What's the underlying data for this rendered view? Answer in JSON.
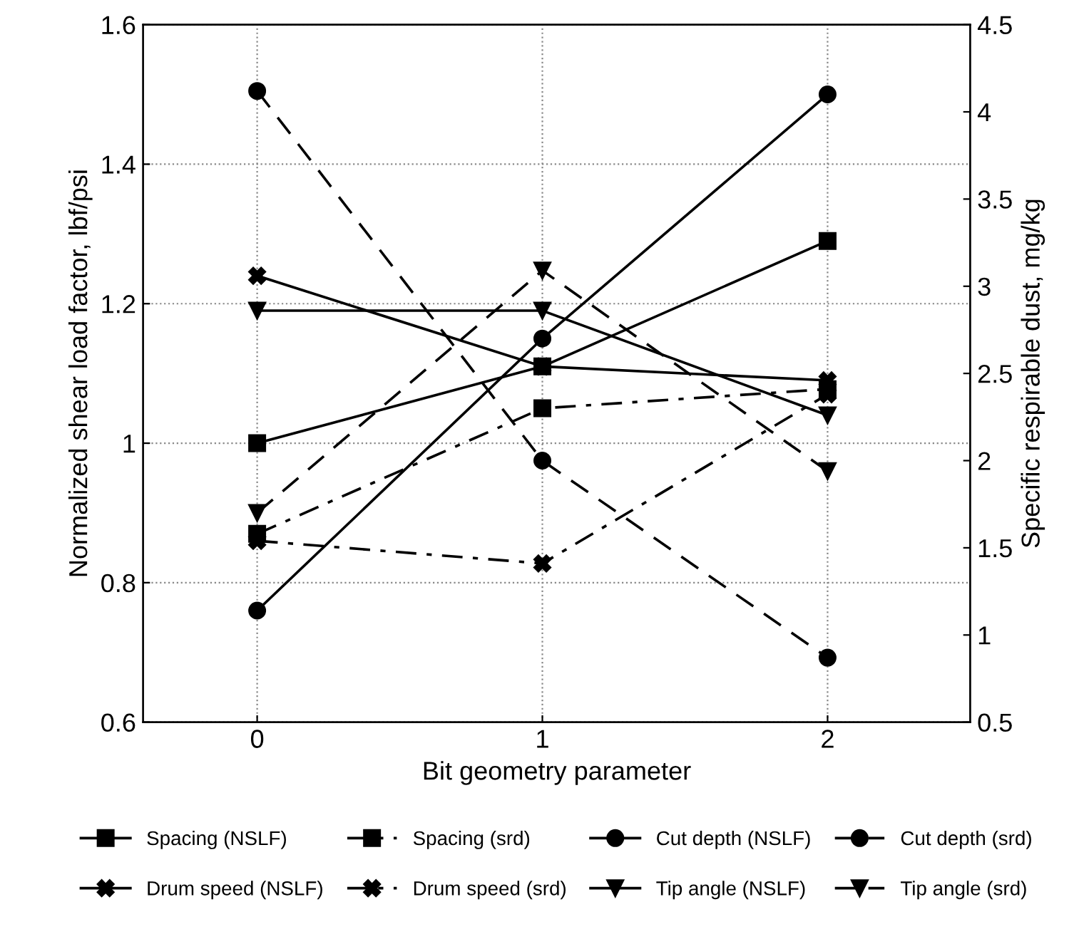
{
  "chart_data": {
    "type": "line",
    "xlabel": "Bit geometry parameter",
    "ylabel": "Normalized shear load factor, lbf/psi",
    "y2label": "Specific respirable dust, mg/kg",
    "x": [
      0,
      1,
      2
    ],
    "xlim": [
      -0.4,
      2.5
    ],
    "xticks": [
      0,
      1,
      2
    ],
    "ylim": [
      0.6,
      1.6
    ],
    "yticks": [
      0.6,
      0.8,
      1,
      1.2,
      1.4,
      1.6
    ],
    "y2lim": [
      0.5,
      4.5
    ],
    "y2ticks": [
      0.5,
      1,
      1.5,
      2,
      2.5,
      3,
      3.5,
      4,
      4.5
    ],
    "grid": true,
    "legend": "bottom",
    "series": [
      {
        "name": "Spacing (NSLF)",
        "color": "#000000",
        "marker": "square",
        "line_style": "solid",
        "values": [
          1.0,
          1.11,
          1.29
        ]
      },
      {
        "name": "Spacing (srd)",
        "color": "#000000",
        "marker": "square",
        "line_style": "dashdot",
        "axis": "y2",
        "values": [
          1.58,
          2.3,
          2.41
        ]
      },
      {
        "name": "Cut depth (NSLF)",
        "color": "#000000",
        "marker": "circle",
        "line_style": "solid",
        "values": [
          0.76,
          1.15,
          1.5
        ]
      },
      {
        "name": "Cut depth (srd)",
        "color": "#000000",
        "marker": "circle",
        "line_style": "dashed",
        "axis": "y2",
        "values": [
          4.12,
          2.0,
          0.87
        ]
      },
      {
        "name": "Drum speed (NSLF)",
        "color": "#000000",
        "marker": "cross",
        "line_style": "solid",
        "values": [
          1.24,
          1.11,
          1.09
        ]
      },
      {
        "name": "Drum speed (srd)",
        "color": "#000000",
        "marker": "cross",
        "line_style": "dashdot",
        "axis": "y2",
        "values": [
          1.54,
          1.41,
          2.38
        ]
      },
      {
        "name": "Tip angle (NSLF)",
        "color": "#000000",
        "marker": "triangle",
        "line_style": "solid",
        "values": [
          1.19,
          1.19,
          1.04
        ]
      },
      {
        "name": "Tip angle (srd)",
        "color": "#000000",
        "marker": "triangle",
        "line_style": "dashed",
        "axis": "y2",
        "values": [
          1.7,
          3.09,
          1.94
        ]
      }
    ]
  }
}
